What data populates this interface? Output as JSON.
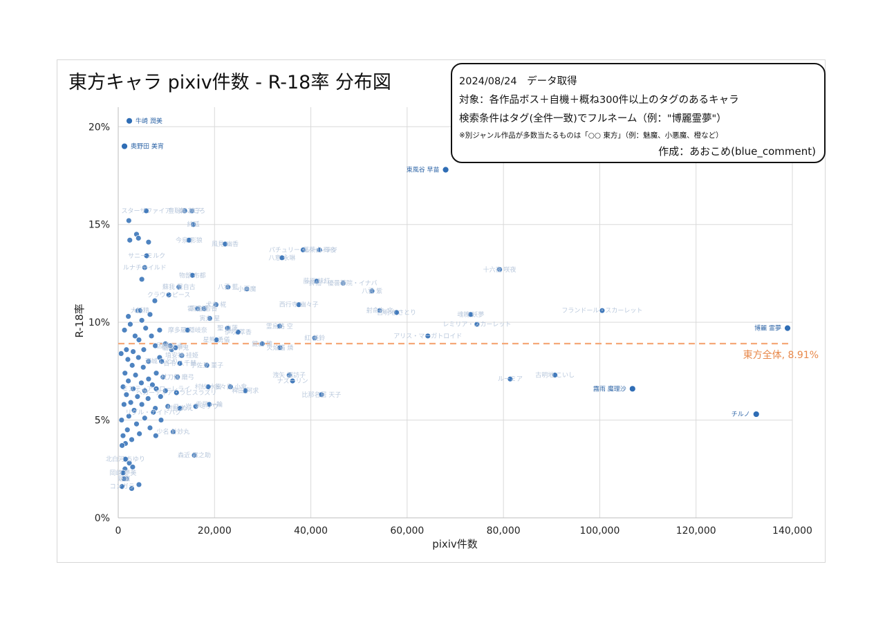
{
  "info": {
    "date_line": "2024/08/24　データ取得",
    "target_line": "対象：各作品ボス＋自機＋概ね300件以上のタグのあるキャラ",
    "condition_line": "検索条件はタグ(全件一致)でフルネーム（例：\"博麗霊夢\"）",
    "note_line": "※別ジャンル作品が多数当たるものは「○○ 東方」（例：魅魔、小悪魔、橙など）",
    "credit_line": "作成：あおこめ(blue_comment)"
  },
  "chart_data": {
    "type": "scatter",
    "title": "東方キャラ pixiv件数 - R-18率 分布図",
    "xlabel": "pixiv件数",
    "ylabel": "R-18率",
    "xlim": [
      0,
      140000
    ],
    "ylim": [
      0,
      21
    ],
    "x_ticks": [
      "0",
      "20,000",
      "40,000",
      "60,000",
      "80,000",
      "100,000",
      "120,000",
      "140,000"
    ],
    "y_ticks": [
      "0%",
      "5%",
      "10%",
      "15%",
      "20%"
    ],
    "grid": true,
    "colors": {
      "point": "#2f6db5",
      "point_faint": "#2f6db5",
      "average_line": "#f5a878",
      "average_text": "#e8884a"
    },
    "average": {
      "value": 8.91,
      "label": "東方全体, 8.91%"
    },
    "labeled_points": [
      {
        "name": "牛崎 潤美",
        "x": 2300,
        "y": 20.3
      },
      {
        "name": "奥野田 美宵",
        "x": 1300,
        "y": 19.0
      },
      {
        "name": "東風谷 早苗",
        "x": 68000,
        "y": 17.8
      },
      {
        "name": "博麗 霊夢",
        "x": 139000,
        "y": 9.7
      },
      {
        "name": "霧雨 魔理沙",
        "x": 106800,
        "y": 6.6
      },
      {
        "name": "チルノ",
        "x": 132500,
        "y": 5.3
      }
    ],
    "faint_points": [
      {
        "name": "フランドール・スカーレット",
        "x": 100500,
        "y": 10.6
      },
      {
        "name": "十六夜 咲夜",
        "x": 79200,
        "y": 12.7
      },
      {
        "name": "魂魄 妖夢",
        "x": 73200,
        "y": 10.4
      },
      {
        "name": "レミリア・スカーレット",
        "x": 74500,
        "y": 9.9
      },
      {
        "name": "古明地 こいし",
        "x": 90700,
        "y": 7.3
      },
      {
        "name": "アリス・マーガトロイド",
        "x": 64300,
        "y": 9.3
      },
      {
        "name": "パチュリー・ノーレッジ",
        "x": 38400,
        "y": 13.7
      },
      {
        "name": "蓬莱山 輝夜",
        "x": 41800,
        "y": 13.7
      },
      {
        "name": "鈴仙・優曇華院・イナバ",
        "x": 46700,
        "y": 12.0
      },
      {
        "name": "八雲 紫",
        "x": 52700,
        "y": 11.6
      },
      {
        "name": "射命丸 文",
        "x": 54300,
        "y": 10.6
      },
      {
        "name": "古明地 さとり",
        "x": 57800,
        "y": 10.5
      },
      {
        "name": "八意 永琳",
        "x": 34000,
        "y": 13.3
      },
      {
        "name": "西行寺 幽々子",
        "x": 37500,
        "y": 10.9
      },
      {
        "name": "藤原 妹紅",
        "x": 41200,
        "y": 12.1
      },
      {
        "name": "紅 美鈴",
        "x": 40800,
        "y": 9.2
      },
      {
        "name": "洩矢 諏訪子",
        "x": 35500,
        "y": 7.3
      },
      {
        "name": "ナズーリン",
        "x": 36200,
        "y": 7.0
      },
      {
        "name": "比那名居 天子",
        "x": 42200,
        "y": 6.3
      },
      {
        "name": "ルーミア",
        "x": 81400,
        "y": 7.1
      },
      {
        "name": "風見 幽香",
        "x": 22200,
        "y": 14.0
      },
      {
        "name": "八雲 藍",
        "x": 22800,
        "y": 11.8
      },
      {
        "name": "霊烏路 空",
        "x": 33500,
        "y": 9.8
      },
      {
        "name": "小悪魔",
        "x": 26700,
        "y": 11.7
      },
      {
        "name": "火焔猫 燐",
        "x": 33600,
        "y": 8.7
      },
      {
        "name": "鍵山 雛",
        "x": 29900,
        "y": 8.9
      },
      {
        "name": "稗田 阿求",
        "x": 26400,
        "y": 6.5
      },
      {
        "name": "多々良 小傘",
        "x": 23300,
        "y": 6.7
      },
      {
        "name": "聖 白蓮",
        "x": 22700,
        "y": 9.7
      },
      {
        "name": "犬走 椛",
        "x": 20300,
        "y": 10.9
      },
      {
        "name": "寅丸 星",
        "x": 19000,
        "y": 10.2
      },
      {
        "name": "宇佐見 菫子",
        "x": 18400,
        "y": 7.8
      },
      {
        "name": "星熊 勇儀",
        "x": 20400,
        "y": 9.1
      },
      {
        "name": "伊吹 萃香",
        "x": 24900,
        "y": 9.5
      },
      {
        "name": "秦 こころ",
        "x": 15300,
        "y": 15.7
      },
      {
        "name": "豊聡耳 神子",
        "x": 13800,
        "y": 15.7
      },
      {
        "name": "今泉 影狼",
        "x": 14700,
        "y": 14.2
      },
      {
        "name": "純狐",
        "x": 15600,
        "y": 15.0
      },
      {
        "name": "物部 布都",
        "x": 15400,
        "y": 12.4
      },
      {
        "name": "蘇我 屠自古",
        "x": 12600,
        "y": 11.8
      },
      {
        "name": "霍 青娥",
        "x": 16500,
        "y": 10.7
      },
      {
        "name": "宮古 芳香",
        "x": 17800,
        "y": 10.7
      },
      {
        "name": "スターサファイア",
        "x": 5800,
        "y": 15.7
      },
      {
        "name": "サニーミルク",
        "x": 5900,
        "y": 13.4
      },
      {
        "name": "ルナチャイルド",
        "x": 5500,
        "y": 12.8
      },
      {
        "name": "クラウンピース",
        "x": 10500,
        "y": 11.4
      },
      {
        "name": "摩多羅 隠岐奈",
        "x": 14400,
        "y": 9.6
      },
      {
        "name": "驪駒 早鬼",
        "x": 11900,
        "y": 8.7
      },
      {
        "name": "埴安神 袿姫",
        "x": 13200,
        "y": 8.3
      },
      {
        "name": "吉弔 八千慧",
        "x": 12800,
        "y": 7.9
      },
      {
        "name": "杖刀偶 磨弓",
        "x": 12300,
        "y": 7.2
      },
      {
        "name": "森近 霖之助",
        "x": 15800,
        "y": 3.2
      },
      {
        "name": "ヘカーティア・ラピスラズリ",
        "x": 12100,
        "y": 6.4
      },
      {
        "name": "少名 針妙丸",
        "x": 11400,
        "y": 4.4
      },
      {
        "name": "二ッ岩 マミゾウ",
        "x": 16100,
        "y": 5.7
      },
      {
        "name": "雲居 一輪",
        "x": 18900,
        "y": 5.8
      },
      {
        "name": "村紗 水蜜",
        "x": 18700,
        "y": 6.7
      },
      {
        "name": "封獣 ぬえ",
        "x": 12800,
        "y": 5.6
      },
      {
        "name": "河城 にとり",
        "x": 9000,
        "y": 8.0
      },
      {
        "name": "因幡 てゐ",
        "x": 10800,
        "y": 8.8
      },
      {
        "name": "ミスティア・ローレライ",
        "x": 7900,
        "y": 6.6
      },
      {
        "name": "リグル・ナイトバグ",
        "x": 7300,
        "y": 5.4
      },
      {
        "name": "大妖精",
        "x": 4500,
        "y": 10.6
      },
      {
        "name": "北白河 ちゆり",
        "x": 1500,
        "y": 3.0
      },
      {
        "name": "コンガラ",
        "x": 800,
        "y": 1.6
      },
      {
        "name": "岡崎 夢美",
        "x": 1000,
        "y": 2.3
      },
      {
        "name": "魅魔",
        "x": 1200,
        "y": 2.0
      }
    ],
    "cluster_points": [
      {
        "x": 2200,
        "y": 15.2
      },
      {
        "x": 3800,
        "y": 14.5
      },
      {
        "x": 2400,
        "y": 14.2
      },
      {
        "x": 6300,
        "y": 14.1
      },
      {
        "x": 4200,
        "y": 14.3
      },
      {
        "x": 4900,
        "y": 12.2
      },
      {
        "x": 7600,
        "y": 11.1
      },
      {
        "x": 4100,
        "y": 10.6
      },
      {
        "x": 2100,
        "y": 10.3
      },
      {
        "x": 6600,
        "y": 10.4
      },
      {
        "x": 4900,
        "y": 10.1
      },
      {
        "x": 2500,
        "y": 9.9
      },
      {
        "x": 1300,
        "y": 9.6
      },
      {
        "x": 3500,
        "y": 9.3
      },
      {
        "x": 5700,
        "y": 9.7
      },
      {
        "x": 8600,
        "y": 9.6
      },
      {
        "x": 4300,
        "y": 9.1
      },
      {
        "x": 6900,
        "y": 9.3
      },
      {
        "x": 9800,
        "y": 8.9
      },
      {
        "x": 1700,
        "y": 8.6
      },
      {
        "x": 3100,
        "y": 8.5
      },
      {
        "x": 5300,
        "y": 8.6
      },
      {
        "x": 7700,
        "y": 8.8
      },
      {
        "x": 11100,
        "y": 8.6
      },
      {
        "x": 600,
        "y": 8.4
      },
      {
        "x": 2000,
        "y": 8.1
      },
      {
        "x": 4200,
        "y": 8.2
      },
      {
        "x": 6300,
        "y": 8.0
      },
      {
        "x": 8600,
        "y": 8.2
      },
      {
        "x": 2900,
        "y": 7.8
      },
      {
        "x": 5200,
        "y": 7.7
      },
      {
        "x": 1400,
        "y": 7.4
      },
      {
        "x": 3600,
        "y": 7.3
      },
      {
        "x": 7900,
        "y": 7.4
      },
      {
        "x": 9300,
        "y": 7.2
      },
      {
        "x": 2100,
        "y": 7.0
      },
      {
        "x": 4800,
        "y": 6.9
      },
      {
        "x": 6300,
        "y": 7.1
      },
      {
        "x": 1000,
        "y": 6.7
      },
      {
        "x": 3100,
        "y": 6.6
      },
      {
        "x": 5500,
        "y": 6.5
      },
      {
        "x": 7100,
        "y": 6.8
      },
      {
        "x": 9800,
        "y": 6.5
      },
      {
        "x": 1700,
        "y": 6.3
      },
      {
        "x": 4000,
        "y": 6.2
      },
      {
        "x": 6200,
        "y": 6.1
      },
      {
        "x": 8800,
        "y": 6.2
      },
      {
        "x": 2600,
        "y": 5.9
      },
      {
        "x": 4900,
        "y": 5.8
      },
      {
        "x": 1200,
        "y": 5.8
      },
      {
        "x": 3300,
        "y": 5.5
      },
      {
        "x": 7700,
        "y": 5.6
      },
      {
        "x": 10300,
        "y": 5.7
      },
      {
        "x": 2200,
        "y": 5.2
      },
      {
        "x": 5500,
        "y": 5.1
      },
      {
        "x": 8900,
        "y": 5.0
      },
      {
        "x": 700,
        "y": 5.0
      },
      {
        "x": 3800,
        "y": 4.8
      },
      {
        "x": 6600,
        "y": 4.6
      },
      {
        "x": 1900,
        "y": 4.5
      },
      {
        "x": 4400,
        "y": 4.3
      },
      {
        "x": 7800,
        "y": 4.2
      },
      {
        "x": 1000,
        "y": 4.2
      },
      {
        "x": 2800,
        "y": 4.0
      },
      {
        "x": 1500,
        "y": 3.8
      },
      {
        "x": 800,
        "y": 3.7
      },
      {
        "x": 2300,
        "y": 2.8
      },
      {
        "x": 1400,
        "y": 2.5
      },
      {
        "x": 3000,
        "y": 2.6
      },
      {
        "x": 1700,
        "y": 2.0
      },
      {
        "x": 4300,
        "y": 1.7
      },
      {
        "x": 2800,
        "y": 1.5
      }
    ]
  }
}
